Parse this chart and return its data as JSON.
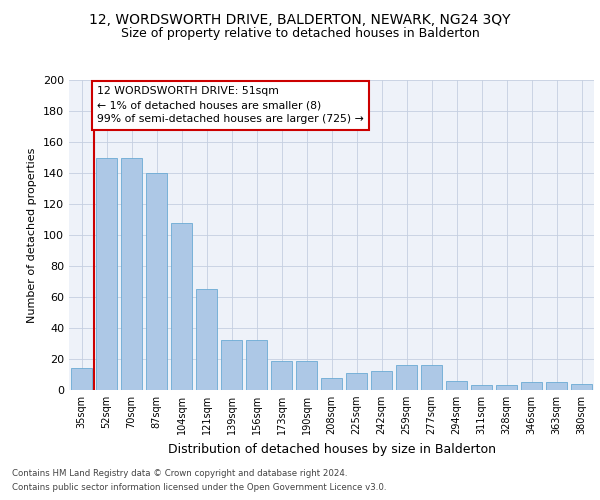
{
  "title1": "12, WORDSWORTH DRIVE, BALDERTON, NEWARK, NG24 3QY",
  "title2": "Size of property relative to detached houses in Balderton",
  "xlabel": "Distribution of detached houses by size in Balderton",
  "ylabel": "Number of detached properties",
  "categories": [
    "35sqm",
    "52sqm",
    "70sqm",
    "87sqm",
    "104sqm",
    "121sqm",
    "139sqm",
    "156sqm",
    "173sqm",
    "190sqm",
    "208sqm",
    "225sqm",
    "242sqm",
    "259sqm",
    "277sqm",
    "294sqm",
    "311sqm",
    "328sqm",
    "346sqm",
    "363sqm",
    "380sqm"
  ],
  "values": [
    14,
    150,
    150,
    140,
    108,
    65,
    32,
    32,
    19,
    19,
    8,
    11,
    12,
    16,
    16,
    6,
    3,
    3,
    5,
    5,
    4
  ],
  "bar_color": "#adc8e6",
  "bar_edge_color": "#6aaad4",
  "annotation_line1": "12 WORDSWORTH DRIVE: 51sqm",
  "annotation_line2": "← 1% of detached houses are smaller (8)",
  "annotation_line3": "99% of semi-detached houses are larger (725) →",
  "vline_color": "#cc0000",
  "box_color": "#cc0000",
  "ylim": [
    0,
    200
  ],
  "yticks": [
    0,
    20,
    40,
    60,
    80,
    100,
    120,
    140,
    160,
    180,
    200
  ],
  "footer1": "Contains HM Land Registry data © Crown copyright and database right 2024.",
  "footer2": "Contains public sector information licensed under the Open Government Licence v3.0.",
  "bg_color": "#eef2f9",
  "title1_fontsize": 10,
  "title2_fontsize": 9
}
